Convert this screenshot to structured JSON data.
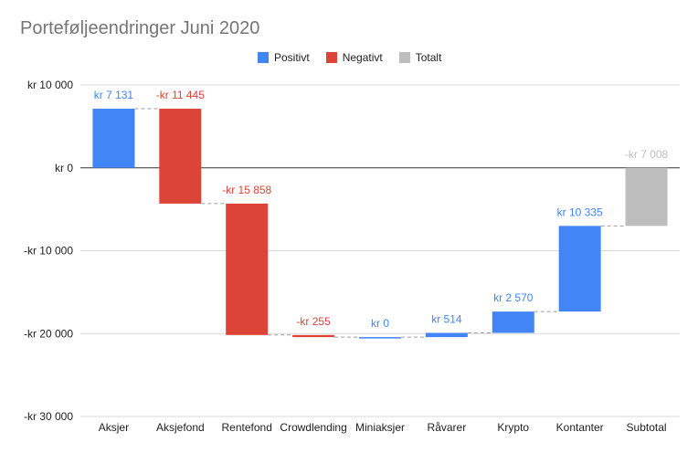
{
  "chart_data": {
    "type": "bar",
    "subtype": "waterfall",
    "title": "Porteføljeendringer Juni 2020",
    "xlabel": "",
    "ylabel": "",
    "ylim": [
      -30000,
      10000
    ],
    "yticks": [
      10000,
      0,
      -10000,
      -20000,
      -30000
    ],
    "ytick_labels": [
      "kr  10 000",
      "kr   0",
      "-kr  10 000",
      "-kr  20 000",
      "-kr  30 000"
    ],
    "legend": {
      "position": "top",
      "entries": [
        {
          "label": "Positivt",
          "color": "#4285f4"
        },
        {
          "label": "Negativt",
          "color": "#db4437"
        },
        {
          "label": "Totalt",
          "color": "#bdbdbd"
        }
      ]
    },
    "grid": true,
    "categories": [
      "Aksjer",
      "Aksjefond",
      "Rentefond",
      "Crowdlending",
      "Miniaksjer",
      "Råvarer",
      "Krypto",
      "Kontanter",
      "Subtotal"
    ],
    "values": [
      7131,
      -11445,
      -15858,
      -255,
      0,
      514,
      2570,
      10335,
      -7008
    ],
    "kinds": [
      "positive",
      "negative",
      "negative",
      "negative",
      "positive",
      "positive",
      "positive",
      "positive",
      "total"
    ],
    "data_labels": [
      "kr  7 131",
      "-kr  11 445",
      "-kr  15 858",
      "-kr   255",
      "kr   0",
      "kr   514",
      "kr  2 570",
      "kr  10 335",
      "-kr  7 008"
    ],
    "colors": {
      "positive": "#4285f4",
      "negative": "#db4437",
      "total": "#bdbdbd"
    }
  }
}
